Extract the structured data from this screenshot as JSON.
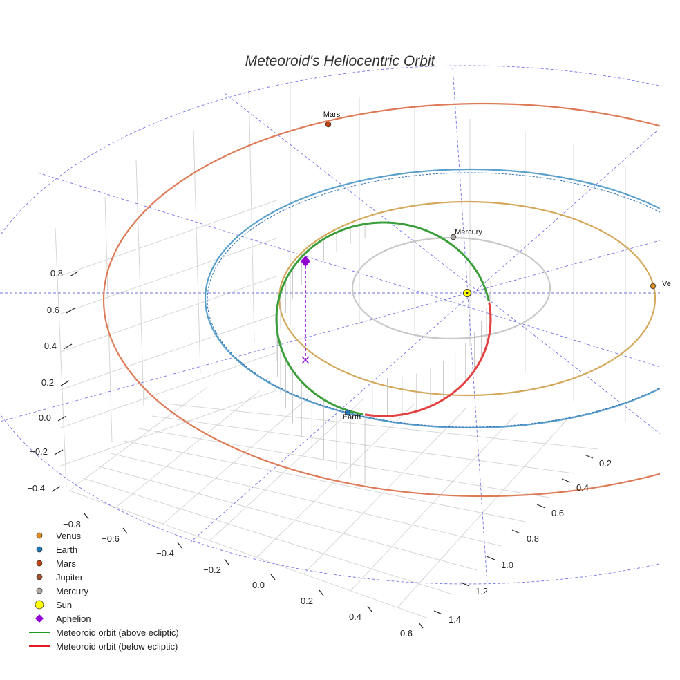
{
  "chart_data": {
    "type": "scatter",
    "title": "Meteoroid's Heliocentric Orbit",
    "axes": {
      "x_ticks": [
        "−0.8",
        "−0.6",
        "−0.4",
        "−0.2",
        "0.0",
        "0.2",
        "0.4",
        "0.6"
      ],
      "y_ticks": [
        "0.2",
        "0.4",
        "0.6",
        "0.8",
        "1.0",
        "1.2",
        "1.4"
      ],
      "z_ticks": [
        "−0.4",
        "−0.2",
        "0.0",
        "0.2",
        "0.4",
        "0.6",
        "0.8"
      ]
    },
    "planets": [
      {
        "name": "Venus",
        "label": "Ve",
        "color": "#d98c1f"
      },
      {
        "name": "Earth",
        "label": "Earth",
        "color": "#1f77b4"
      },
      {
        "name": "Mars",
        "label": "Mars",
        "color": "#c1440e"
      },
      {
        "name": "Jupiter",
        "label": "",
        "color": "#a0522d"
      },
      {
        "name": "Mercury",
        "label": "Mercury",
        "color": "#b0a8a0"
      }
    ],
    "orbit_colors": {
      "venus": "#d4a85a",
      "earth": "#5aa0cc",
      "mars": "#de7a55",
      "mercury": "#c8c8c8",
      "above": "#3a9e3a",
      "below": "#e34040",
      "reference": "#5a5ae0"
    },
    "legend": [
      {
        "label": "Venus",
        "marker": "dot",
        "color": "#d98c1f"
      },
      {
        "label": "Earth",
        "marker": "dot",
        "color": "#1f77b4"
      },
      {
        "label": "Mars",
        "marker": "dot",
        "color": "#c1440e"
      },
      {
        "label": "Jupiter",
        "marker": "dot",
        "color": "#a0522d"
      },
      {
        "label": "Mercury",
        "marker": "dot",
        "color": "#b0a8a0"
      },
      {
        "label": "Sun",
        "marker": "sun",
        "color": "#ffff00"
      },
      {
        "label": "Aphelion",
        "marker": "diamond",
        "color": "#9400d3"
      },
      {
        "label": "Meteoroid orbit (above ecliptic)",
        "marker": "line",
        "color": "#1f9a1f"
      },
      {
        "label": "Meteoroid orbit (below ecliptic)",
        "marker": "line",
        "color": "#e41a1c"
      }
    ]
  }
}
